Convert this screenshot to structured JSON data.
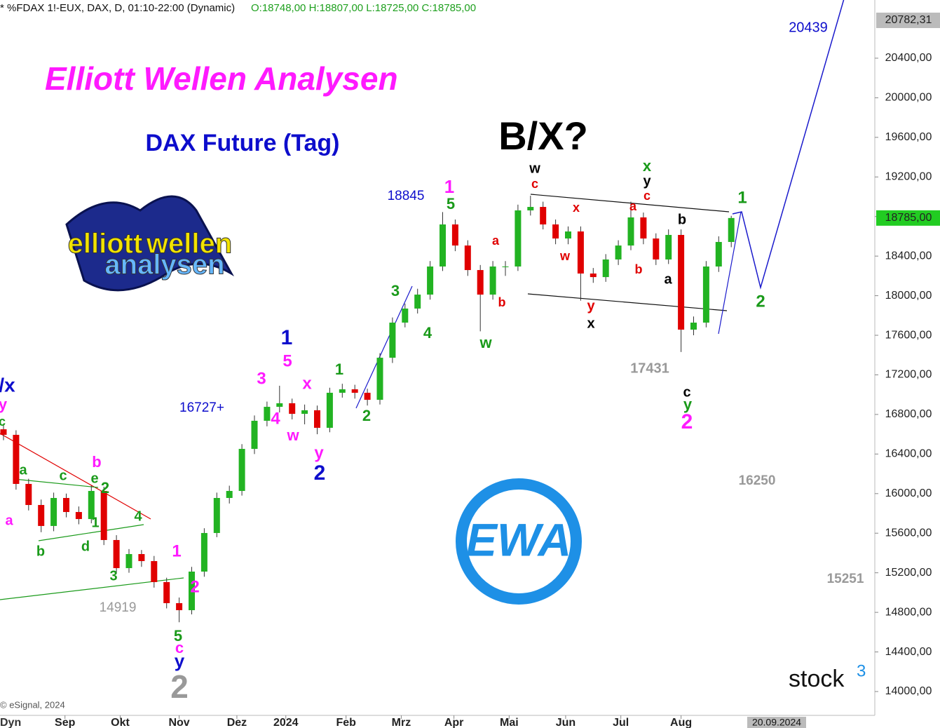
{
  "chart_data": {
    "type": "candlestick",
    "header": "* %FDAX 1!-EUX, DAX, D, 01:10-22:00 (Dynamic)",
    "header_ohlc": "O:18748,00 H:18807,00 L:18725,00 C:18785,00",
    "title": "Elliott Wellen Analysen",
    "subtitle": "DAX Future (Tag)",
    "headline": "B/X?",
    "open": [
      16650,
      16594,
      16098,
      15885,
      15673,
      15956,
      15814,
      15743,
      16027,
      15531,
      15247,
      15389,
      15318,
      15106,
      14893,
      14822,
      15212,
      15602,
      15956,
      16027,
      16452,
      16736,
      16877,
      16913,
      16806,
      16842,
      16665,
      17019,
      17054,
      17019,
      16948,
      17373,
      17728,
      17870,
      18011,
      18295,
      18720,
      18507,
      18259,
      18011,
      18295,
      18295,
      18862,
      18897,
      18720,
      18578,
      18649,
      18224,
      18188,
      18366,
      18507,
      18791,
      18578,
      18366,
      18614,
      17657,
      17728,
      18295,
      18543
    ],
    "high": [
      16700,
      16640,
      16150,
      15940,
      16010,
      16000,
      15870,
      16080,
      16070,
      15580,
      15440,
      15430,
      15370,
      15150,
      14950,
      15260,
      15650,
      16010,
      16080,
      16500,
      16790,
      16930,
      17090,
      16960,
      16900,
      16890,
      17070,
      17110,
      17100,
      17060,
      17420,
      17780,
      17920,
      18070,
      18350,
      18845,
      18770,
      18560,
      18310,
      18350,
      18350,
      18920,
      19010,
      18950,
      18770,
      18700,
      18700,
      18280,
      18420,
      18560,
      18950,
      18840,
      18630,
      18670,
      18670,
      17790,
      18350,
      18600,
      18807
    ],
    "low": [
      16540,
      16040,
      15830,
      15610,
      15620,
      15760,
      15690,
      15700,
      15480,
      15190,
      15200,
      15260,
      15050,
      14840,
      14700,
      14780,
      15160,
      15560,
      15900,
      15980,
      16400,
      16680,
      16820,
      16750,
      16700,
      16600,
      16620,
      16970,
      16960,
      16890,
      16900,
      17320,
      17680,
      17820,
      17960,
      18250,
      18450,
      18200,
      17640,
      17960,
      18200,
      18250,
      18810,
      18670,
      18520,
      18520,
      17950,
      18130,
      18140,
      18310,
      18460,
      18520,
      18310,
      18320,
      17431,
      17600,
      17680,
      18240,
      18490
    ],
    "close": [
      16594,
      16098,
      15885,
      15673,
      15956,
      15814,
      15743,
      16027,
      15531,
      15247,
      15389,
      15318,
      15106,
      14893,
      14822,
      15212,
      15602,
      15956,
      16027,
      16452,
      16736,
      16877,
      16913,
      16806,
      16842,
      16665,
      17019,
      17054,
      17019,
      16948,
      17373,
      17728,
      17870,
      18011,
      18295,
      18720,
      18507,
      18259,
      18011,
      18295,
      18295,
      18862,
      18897,
      18720,
      18578,
      18649,
      18224,
      18188,
      18366,
      18507,
      18791,
      18578,
      18366,
      18614,
      17657,
      17728,
      18295,
      18543,
      18785
    ],
    "up_color": "#22b322",
    "down_color": "#e00000",
    "ylim": [
      13759,
      20988
    ],
    "yticks": [
      {
        "value": 14000,
        "label": "14000,00"
      },
      {
        "value": 14400,
        "label": "14400,00"
      },
      {
        "value": 14800,
        "label": "14800,00"
      },
      {
        "value": 15200,
        "label": "15200,00"
      },
      {
        "value": 15600,
        "label": "15600,00"
      },
      {
        "value": 16000,
        "label": "16000,00"
      },
      {
        "value": 16400,
        "label": "16400,00"
      },
      {
        "value": 16800,
        "label": "16800,00"
      },
      {
        "value": 17200,
        "label": "17200,00"
      },
      {
        "value": 17600,
        "label": "17600,00"
      },
      {
        "value": 18000,
        "label": "18000,00"
      },
      {
        "value": 18400,
        "label": "18400,00"
      },
      {
        "value": 18800,
        "label": "18800,00"
      },
      {
        "value": 19200,
        "label": "19200,00"
      },
      {
        "value": 19600,
        "label": "19600,00"
      },
      {
        "value": 20000,
        "label": "20000,00"
      },
      {
        "value": 20400,
        "label": "20400,00"
      }
    ],
    "last_price": {
      "value": 18785,
      "label": "18785,00"
    },
    "top_price": {
      "value": 20782.31,
      "label": "20782,31"
    },
    "xticks": [
      {
        "value": 4.9,
        "label": "Sep"
      },
      {
        "value": 9.3,
        "label": "Okt"
      },
      {
        "value": 14,
        "label": "Nov"
      },
      {
        "value": 18.6,
        "label": "Dez"
      },
      {
        "value": 22.5,
        "label": "2024"
      },
      {
        "value": 27.3,
        "label": "Feb"
      },
      {
        "value": 31.7,
        "label": "Mrz"
      },
      {
        "value": 35.9,
        "label": "Apr"
      },
      {
        "value": 40.3,
        "label": "Mai"
      },
      {
        "value": 44.8,
        "label": "Jun"
      },
      {
        "value": 49.2,
        "label": "Jul"
      },
      {
        "value": 54,
        "label": "Aug"
      }
    ],
    "date_box": "20.09.2024",
    "axis_mode": "Dyn",
    "copyright": "© eSignal, 2024",
    "logo_ewa": "EWA",
    "logo_stock": "stock",
    "logo_stock_sup": "3",
    "logo_elliott": [
      "elliott",
      "wellen",
      "analysen"
    ],
    "annotations": [
      "/x",
      "y",
      "c",
      "a",
      "c",
      "b",
      "e",
      "2",
      "a",
      "1",
      "4",
      "b",
      "d",
      "3",
      "14919",
      "1",
      "2",
      "5",
      "c",
      "y",
      "2",
      "3",
      "4",
      "w",
      "x",
      "1",
      "5",
      "y",
      "2",
      "16727+",
      "1",
      "2",
      "3",
      "4",
      "18845",
      "1",
      "5",
      "a",
      "b",
      "w",
      "w",
      "c",
      "x",
      "w",
      "y",
      "x",
      "x",
      "y",
      "c",
      "a",
      "b",
      "b",
      "a",
      "17431",
      "c",
      "y",
      "2",
      "1",
      "2",
      "20439",
      "16250",
      "15251"
    ]
  }
}
